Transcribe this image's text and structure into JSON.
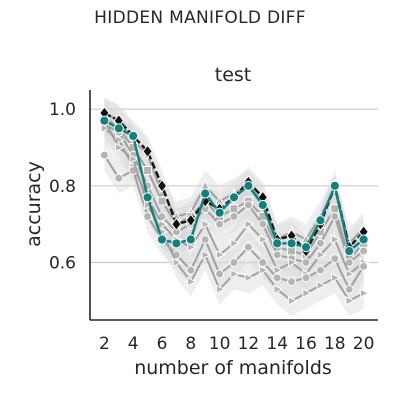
{
  "figure_title": "HIDDEN MANIFOLD DIFF",
  "chart_data": {
    "type": "line",
    "title": "test",
    "xlabel": "number of manifolds",
    "ylabel": "accuracy",
    "xlim": [
      1,
      21
    ],
    "ylim": [
      0.45,
      1.05
    ],
    "x_ticks": [
      2,
      4,
      6,
      8,
      10,
      12,
      14,
      16,
      18,
      20
    ],
    "y_ticks": [
      0.6,
      0.8,
      1.0
    ],
    "y_tick_labels": [
      "0.6",
      "0.8",
      "1.0"
    ],
    "grid": "horizontal",
    "x": [
      2,
      3,
      4,
      5,
      6,
      7,
      8,
      9,
      10,
      11,
      12,
      13,
      14,
      15,
      16,
      17,
      18,
      19,
      20
    ],
    "colors": {
      "highlight": "#128080",
      "black": "#111111",
      "gray": "#a0a0a0",
      "band": "#d9d9d9"
    },
    "series": [
      {
        "style": "highlight",
        "marker": "circle",
        "values": [
          0.97,
          0.95,
          0.93,
          0.77,
          0.66,
          0.65,
          0.66,
          0.78,
          0.73,
          0.77,
          0.8,
          0.75,
          0.65,
          0.65,
          0.64,
          0.71,
          0.8,
          0.63,
          0.66
        ]
      },
      {
        "style": "black",
        "marker": "diamond",
        "dash": true,
        "values": [
          0.99,
          0.97,
          0.93,
          0.89,
          0.8,
          0.7,
          0.71,
          0.76,
          0.74,
          0.77,
          0.81,
          0.77,
          0.66,
          0.67,
          0.63,
          0.7,
          0.8,
          0.64,
          0.68
        ]
      },
      {
        "style": "gray",
        "marker": "triangle-up",
        "values": [
          0.99,
          0.97,
          0.92,
          0.88,
          0.78,
          0.72,
          0.73,
          0.8,
          0.76,
          0.78,
          0.8,
          0.76,
          0.66,
          0.68,
          0.66,
          0.72,
          0.79,
          0.65,
          0.69
        ]
      },
      {
        "style": "gray",
        "marker": "square",
        "values": [
          0.98,
          0.95,
          0.9,
          0.84,
          0.76,
          0.7,
          0.72,
          0.76,
          0.72,
          0.74,
          0.76,
          0.72,
          0.64,
          0.63,
          0.62,
          0.68,
          0.74,
          0.61,
          0.65
        ]
      },
      {
        "style": "gray",
        "marker": "circle",
        "values": [
          0.96,
          0.94,
          0.88,
          0.8,
          0.72,
          0.68,
          0.7,
          0.74,
          0.7,
          0.72,
          0.75,
          0.7,
          0.62,
          0.61,
          0.6,
          0.65,
          0.72,
          0.6,
          0.63
        ]
      },
      {
        "style": "gray",
        "marker": "triangle-right",
        "values": [
          0.95,
          0.92,
          0.85,
          0.77,
          0.7,
          0.66,
          0.64,
          0.7,
          0.62,
          0.65,
          0.7,
          0.66,
          0.58,
          0.6,
          0.57,
          0.62,
          0.66,
          0.57,
          0.6
        ]
      },
      {
        "style": "gray",
        "marker": "circle",
        "values": [
          0.88,
          0.82,
          0.84,
          0.72,
          0.66,
          0.62,
          0.58,
          0.66,
          0.57,
          0.6,
          0.64,
          0.6,
          0.56,
          0.55,
          0.56,
          0.58,
          0.61,
          0.53,
          0.59
        ]
      },
      {
        "style": "gray",
        "marker": "triangle-right",
        "values": [
          0.97,
          0.9,
          0.87,
          0.75,
          0.68,
          0.6,
          0.55,
          0.62,
          0.53,
          0.57,
          0.56,
          0.58,
          0.53,
          0.5,
          0.52,
          0.54,
          0.56,
          0.5,
          0.52
        ]
      }
    ]
  }
}
